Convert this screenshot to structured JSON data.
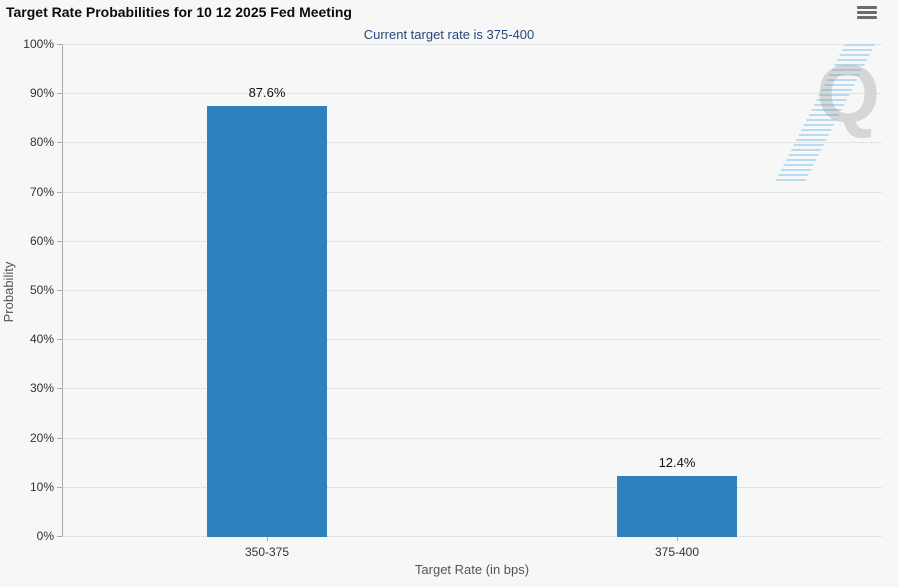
{
  "header": {
    "menu_icon": "hamburger-icon"
  },
  "watermark": {
    "letter": "Q"
  },
  "colors": {
    "bar": "#2d82bd",
    "subtitle": "#26477e",
    "background": "#f7f7f7",
    "gridline": "#cfcfcf",
    "axis": "#aaaaaa",
    "menu_icon": "#6b6b6b",
    "watermark_blue": "#8cc8eb"
  },
  "chart_data": {
    "type": "bar",
    "title": "Target Rate Probabilities for 10 12 2025 Fed Meeting",
    "subtitle": "Current target rate is 375-400",
    "categories": [
      "350-375",
      "375-400"
    ],
    "values": [
      87.6,
      12.4
    ],
    "bar_labels": [
      "87.6%",
      "12.4%"
    ],
    "xlabel": "Target Rate (in bps)",
    "ylabel": "Probability",
    "ylim": [
      0,
      100
    ],
    "ytick_step": 10,
    "ytick_suffix": "%",
    "grid": "dotted-horizontal",
    "legend": "none",
    "bar_color": "#2d82bd"
  }
}
